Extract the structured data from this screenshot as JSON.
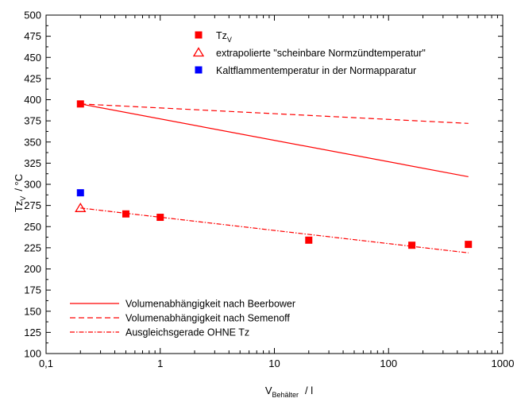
{
  "chart_data": {
    "type": "scatter",
    "x_scale": "log",
    "xlim": [
      0.1,
      1000
    ],
    "ylim": [
      100,
      500
    ],
    "y_ticks": [
      100,
      125,
      150,
      175,
      200,
      225,
      250,
      275,
      300,
      325,
      350,
      375,
      400,
      425,
      450,
      475,
      500
    ],
    "x_ticks": [
      0.1,
      1,
      10,
      100,
      1000
    ],
    "x_tick_labels": [
      "0,1",
      "1",
      "10",
      "100",
      "1000"
    ],
    "xlabel": {
      "main": "V",
      "sub": "Behälter",
      "unit": "/   l"
    },
    "ylabel": {
      "main": "Tz",
      "sub": "V",
      "unit": "/  °C"
    },
    "colors": {
      "red": "#ff0000",
      "blue": "#0000ff",
      "axis": "#000000"
    },
    "series": [
      {
        "name": "Tz",
        "name_sub": "V",
        "marker": "square",
        "color": "#ff0000",
        "points": [
          [
            0.2,
            395
          ],
          [
            0.5,
            265
          ],
          [
            1,
            261
          ],
          [
            20,
            234
          ],
          [
            160,
            228
          ],
          [
            500,
            229
          ]
        ]
      },
      {
        "name": "extrapolierte \"scheinbare Normzündtemperatur\"",
        "marker": "open-triangle",
        "color": "#ff0000",
        "points": [
          [
            0.2,
            272
          ]
        ]
      },
      {
        "name": "Kaltflammentemperatur in der Normapparatur",
        "marker": "square",
        "color": "#0000ff",
        "points": [
          [
            0.2,
            290
          ]
        ]
      },
      {
        "name": "Volumenabhängigkeit nach Beerbower",
        "line": "solid",
        "color": "#ff0000",
        "points": [
          [
            0.2,
            395
          ],
          [
            500,
            309
          ]
        ]
      },
      {
        "name": "Volumenabhängigkeit nach Semenoff",
        "line": "dashed",
        "color": "#ff0000",
        "points": [
          [
            0.2,
            395
          ],
          [
            500,
            372
          ]
        ]
      },
      {
        "name": "Ausgleichsgerade OHNE Tz",
        "line": "dashdot",
        "color": "#ff0000",
        "points": [
          [
            0.2,
            272
          ],
          [
            500,
            219
          ]
        ]
      }
    ]
  }
}
